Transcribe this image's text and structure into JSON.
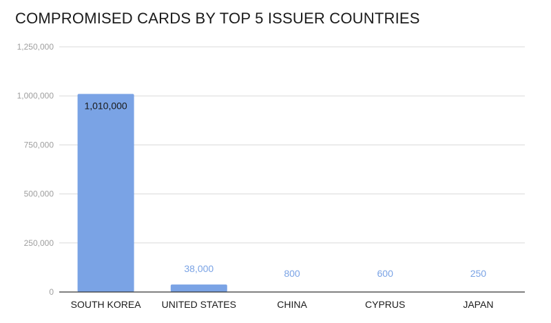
{
  "chart_data": {
    "type": "bar",
    "title": "COMPROMISED CARDS BY TOP 5 ISSUER COUNTRIES",
    "categories": [
      "SOUTH KOREA",
      "UNITED STATES",
      "CHINA",
      "CYPRUS",
      "JAPAN"
    ],
    "values": [
      1010000,
      38000,
      800,
      600,
      250
    ],
    "data_labels": [
      "1,010,000",
      "38,000",
      "800",
      "600",
      "250"
    ],
    "ylim": [
      0,
      1250000
    ],
    "yticks": [
      0,
      250000,
      500000,
      750000,
      1000000,
      1250000
    ],
    "ytick_labels": [
      "0",
      "250,000",
      "500,000",
      "750,000",
      "1,000,000",
      "1,250,000"
    ],
    "grid": true,
    "legend": "none",
    "colors": {
      "bar": "#7aa3e5",
      "grid": "#d9d9d9",
      "axis": "#333333",
      "label_inside": "#1a1a1a",
      "label_outside": "#7aa3e5"
    }
  }
}
